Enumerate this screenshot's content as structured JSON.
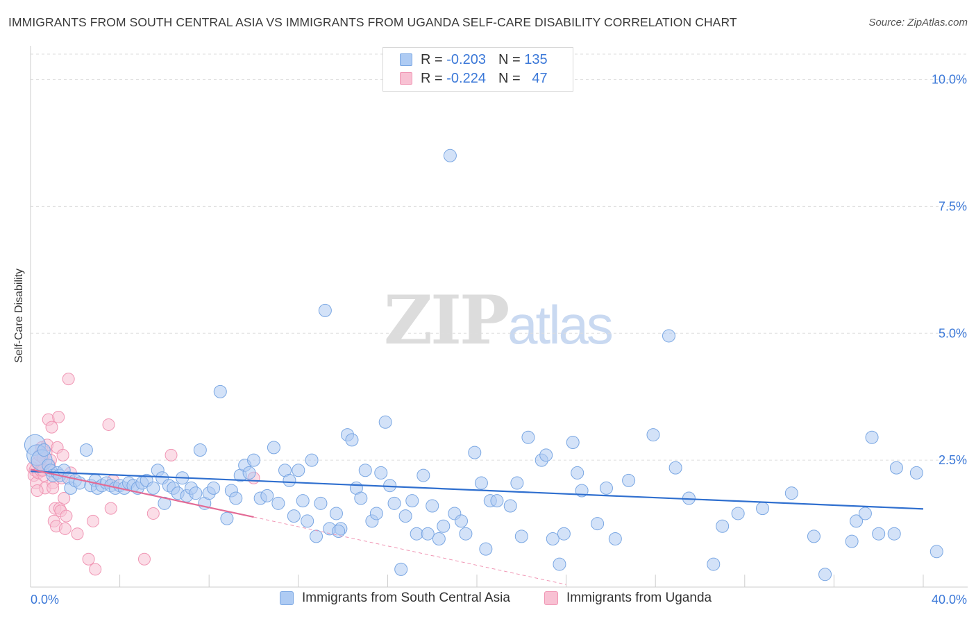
{
  "title": "IMMIGRANTS FROM SOUTH CENTRAL ASIA VS IMMIGRANTS FROM UGANDA SELF-CARE DISABILITY CORRELATION CHART",
  "source": "Source: ZipAtlas.com",
  "watermark": {
    "part1": "ZIP",
    "part2": "atlas"
  },
  "legend": {
    "r_label": "R =",
    "n_label": "N =",
    "series1": {
      "r": "-0.203",
      "n": "135"
    },
    "series2": {
      "r": "-0.224",
      "n": "47"
    }
  },
  "colors": {
    "series1_fill": "#aecbf3",
    "series1_stroke": "#7aa7e3",
    "series1_line": "#2f6fcf",
    "series2_fill": "#f8c1d3",
    "series2_stroke": "#f096b4",
    "series2_line": "#e36b96",
    "axis_text": "#3b78d8",
    "grid": "#dddddd"
  },
  "chart_data": {
    "type": "scatter",
    "title": "IMMIGRANTS FROM SOUTH CENTRAL ASIA VS IMMIGRANTS FROM UGANDA SELF-CARE DISABILITY CORRELATION CHART",
    "xlabel": "",
    "ylabel": "Self-Care Disability",
    "xlim": [
      0,
      40
    ],
    "ylim": [
      0,
      10.5
    ],
    "x_tick_labels": [
      "0.0%",
      "40.0%"
    ],
    "y_ticks": [
      2.5,
      5.0,
      7.5,
      10.0
    ],
    "y_tick_labels": [
      "2.5%",
      "5.0%",
      "7.5%",
      "10.0%"
    ],
    "series": [
      {
        "name": "Immigrants from South Central Asia",
        "r": -0.203,
        "n": 135,
        "trend": {
          "x0": 0,
          "y0": 2.28,
          "x1": 40,
          "y1": 1.54
        },
        "points": [
          [
            0.2,
            2.8
          ],
          [
            0.3,
            2.6
          ],
          [
            0.5,
            2.5
          ],
          [
            0.6,
            2.7
          ],
          [
            0.8,
            2.4
          ],
          [
            0.9,
            2.3
          ],
          [
            1.0,
            2.2
          ],
          [
            1.2,
            2.25
          ],
          [
            1.3,
            2.2
          ],
          [
            1.5,
            2.3
          ],
          [
            1.7,
            2.15
          ],
          [
            1.8,
            1.95
          ],
          [
            2.0,
            2.1
          ],
          [
            2.2,
            2.05
          ],
          [
            2.5,
            2.7
          ],
          [
            2.7,
            2.0
          ],
          [
            2.9,
            2.1
          ],
          [
            3.0,
            1.95
          ],
          [
            3.2,
            2.0
          ],
          [
            3.4,
            2.05
          ],
          [
            3.6,
            2.0
          ],
          [
            3.8,
            1.95
          ],
          [
            4.0,
            2.0
          ],
          [
            4.2,
            1.95
          ],
          [
            4.4,
            2.05
          ],
          [
            4.6,
            2.0
          ],
          [
            4.8,
            1.95
          ],
          [
            5.0,
            2.05
          ],
          [
            5.2,
            2.1
          ],
          [
            5.5,
            1.95
          ],
          [
            5.7,
            2.3
          ],
          [
            5.9,
            2.15
          ],
          [
            6.0,
            1.65
          ],
          [
            6.2,
            2.0
          ],
          [
            6.4,
            1.95
          ],
          [
            6.6,
            1.85
          ],
          [
            6.8,
            2.15
          ],
          [
            7.0,
            1.8
          ],
          [
            7.2,
            1.95
          ],
          [
            7.4,
            1.85
          ],
          [
            7.6,
            2.7
          ],
          [
            7.8,
            1.65
          ],
          [
            8.0,
            1.85
          ],
          [
            8.2,
            1.95
          ],
          [
            8.5,
            3.85
          ],
          [
            8.8,
            1.35
          ],
          [
            9.0,
            1.9
          ],
          [
            9.2,
            1.75
          ],
          [
            9.4,
            2.2
          ],
          [
            9.6,
            2.4
          ],
          [
            9.8,
            2.25
          ],
          [
            10.0,
            2.5
          ],
          [
            10.3,
            1.75
          ],
          [
            10.6,
            1.8
          ],
          [
            10.9,
            2.75
          ],
          [
            11.1,
            1.65
          ],
          [
            11.4,
            2.3
          ],
          [
            11.6,
            2.1
          ],
          [
            11.8,
            1.4
          ],
          [
            12.0,
            2.3
          ],
          [
            12.2,
            1.7
          ],
          [
            12.4,
            1.3
          ],
          [
            12.6,
            2.5
          ],
          [
            12.8,
            1.0
          ],
          [
            13.0,
            1.65
          ],
          [
            13.2,
            5.45
          ],
          [
            13.4,
            1.15
          ],
          [
            13.7,
            1.45
          ],
          [
            13.9,
            1.15
          ],
          [
            14.2,
            3.0
          ],
          [
            14.4,
            2.9
          ],
          [
            14.6,
            1.95
          ],
          [
            14.8,
            1.75
          ],
          [
            15.0,
            2.3
          ],
          [
            15.3,
            1.3
          ],
          [
            15.5,
            1.45
          ],
          [
            15.7,
            2.25
          ],
          [
            15.9,
            3.25
          ],
          [
            16.1,
            2.0
          ],
          [
            16.3,
            1.65
          ],
          [
            16.6,
            0.35
          ],
          [
            16.8,
            1.4
          ],
          [
            17.1,
            1.7
          ],
          [
            17.3,
            1.05
          ],
          [
            17.6,
            2.2
          ],
          [
            17.8,
            1.05
          ],
          [
            18.0,
            1.6
          ],
          [
            18.3,
            0.95
          ],
          [
            18.5,
            1.2
          ],
          [
            18.8,
            8.5
          ],
          [
            19.0,
            1.45
          ],
          [
            19.3,
            1.3
          ],
          [
            19.5,
            1.05
          ],
          [
            19.9,
            2.65
          ],
          [
            20.2,
            2.05
          ],
          [
            20.4,
            0.75
          ],
          [
            20.6,
            1.7
          ],
          [
            20.9,
            1.7
          ],
          [
            21.5,
            1.6
          ],
          [
            21.8,
            2.05
          ],
          [
            22.3,
            2.95
          ],
          [
            22.9,
            2.5
          ],
          [
            23.1,
            2.6
          ],
          [
            23.4,
            0.95
          ],
          [
            23.7,
            0.45
          ],
          [
            23.9,
            1.05
          ],
          [
            24.3,
            2.85
          ],
          [
            24.5,
            2.25
          ],
          [
            24.7,
            1.9
          ],
          [
            25.4,
            1.25
          ],
          [
            25.8,
            1.95
          ],
          [
            26.2,
            0.95
          ],
          [
            26.8,
            2.1
          ],
          [
            27.9,
            3.0
          ],
          [
            28.6,
            4.95
          ],
          [
            28.9,
            2.35
          ],
          [
            29.5,
            1.75
          ],
          [
            30.6,
            0.45
          ],
          [
            31.0,
            1.2
          ],
          [
            31.7,
            1.45
          ],
          [
            32.8,
            1.55
          ],
          [
            34.1,
            1.85
          ],
          [
            35.1,
            1.0
          ],
          [
            35.6,
            0.25
          ],
          [
            36.8,
            0.9
          ],
          [
            37.0,
            1.3
          ],
          [
            37.4,
            1.45
          ],
          [
            37.7,
            2.95
          ],
          [
            38.0,
            1.05
          ],
          [
            38.7,
            1.05
          ],
          [
            38.8,
            2.35
          ],
          [
            39.7,
            2.25
          ],
          [
            40.6,
            0.7
          ],
          [
            13.8,
            1.1
          ],
          [
            22.0,
            1.0
          ]
        ]
      },
      {
        "name": "Immigrants from Uganda",
        "r": -0.224,
        "n": 47,
        "trend": {
          "x0": 0,
          "y0": 2.32,
          "x1": 10.0,
          "y1": 1.38
        },
        "trend_dashed": {
          "x0": 10.0,
          "y0": 1.38,
          "x1": 24.0,
          "y1": 0.05
        },
        "points": [
          [
            0.1,
            2.35
          ],
          [
            0.15,
            2.2
          ],
          [
            0.2,
            2.3
          ],
          [
            0.25,
            2.05
          ],
          [
            0.3,
            2.45
          ],
          [
            0.35,
            2.25
          ],
          [
            0.4,
            2.6
          ],
          [
            0.45,
            2.3
          ],
          [
            0.5,
            2.75
          ],
          [
            0.55,
            2.55
          ],
          [
            0.6,
            2.2
          ],
          [
            0.65,
            1.95
          ],
          [
            0.7,
            2.65
          ],
          [
            0.75,
            2.8
          ],
          [
            0.8,
            3.3
          ],
          [
            0.85,
            2.4
          ],
          [
            0.9,
            2.5
          ],
          [
            0.95,
            3.15
          ],
          [
            1.0,
            2.05
          ],
          [
            1.05,
            1.3
          ],
          [
            1.1,
            1.55
          ],
          [
            1.15,
            1.2
          ],
          [
            1.2,
            2.75
          ],
          [
            1.25,
            3.35
          ],
          [
            1.3,
            1.55
          ],
          [
            1.35,
            1.5
          ],
          [
            1.4,
            2.15
          ],
          [
            1.45,
            2.6
          ],
          [
            1.5,
            1.75
          ],
          [
            1.55,
            1.15
          ],
          [
            1.6,
            1.4
          ],
          [
            1.7,
            4.1
          ],
          [
            1.8,
            2.25
          ],
          [
            2.1,
            1.05
          ],
          [
            2.6,
            0.55
          ],
          [
            2.8,
            1.3
          ],
          [
            2.9,
            0.35
          ],
          [
            3.5,
            3.2
          ],
          [
            3.6,
            1.55
          ],
          [
            3.7,
            2.1
          ],
          [
            5.1,
            0.55
          ],
          [
            5.5,
            1.45
          ],
          [
            6.3,
            2.6
          ],
          [
            10.0,
            2.15
          ],
          [
            0.55,
            2.3
          ],
          [
            0.3,
            1.9
          ],
          [
            1.0,
            1.95
          ]
        ]
      }
    ]
  },
  "bottom_legend": {
    "series1": "Immigrants from South Central Asia",
    "series2": "Immigrants from Uganda"
  }
}
